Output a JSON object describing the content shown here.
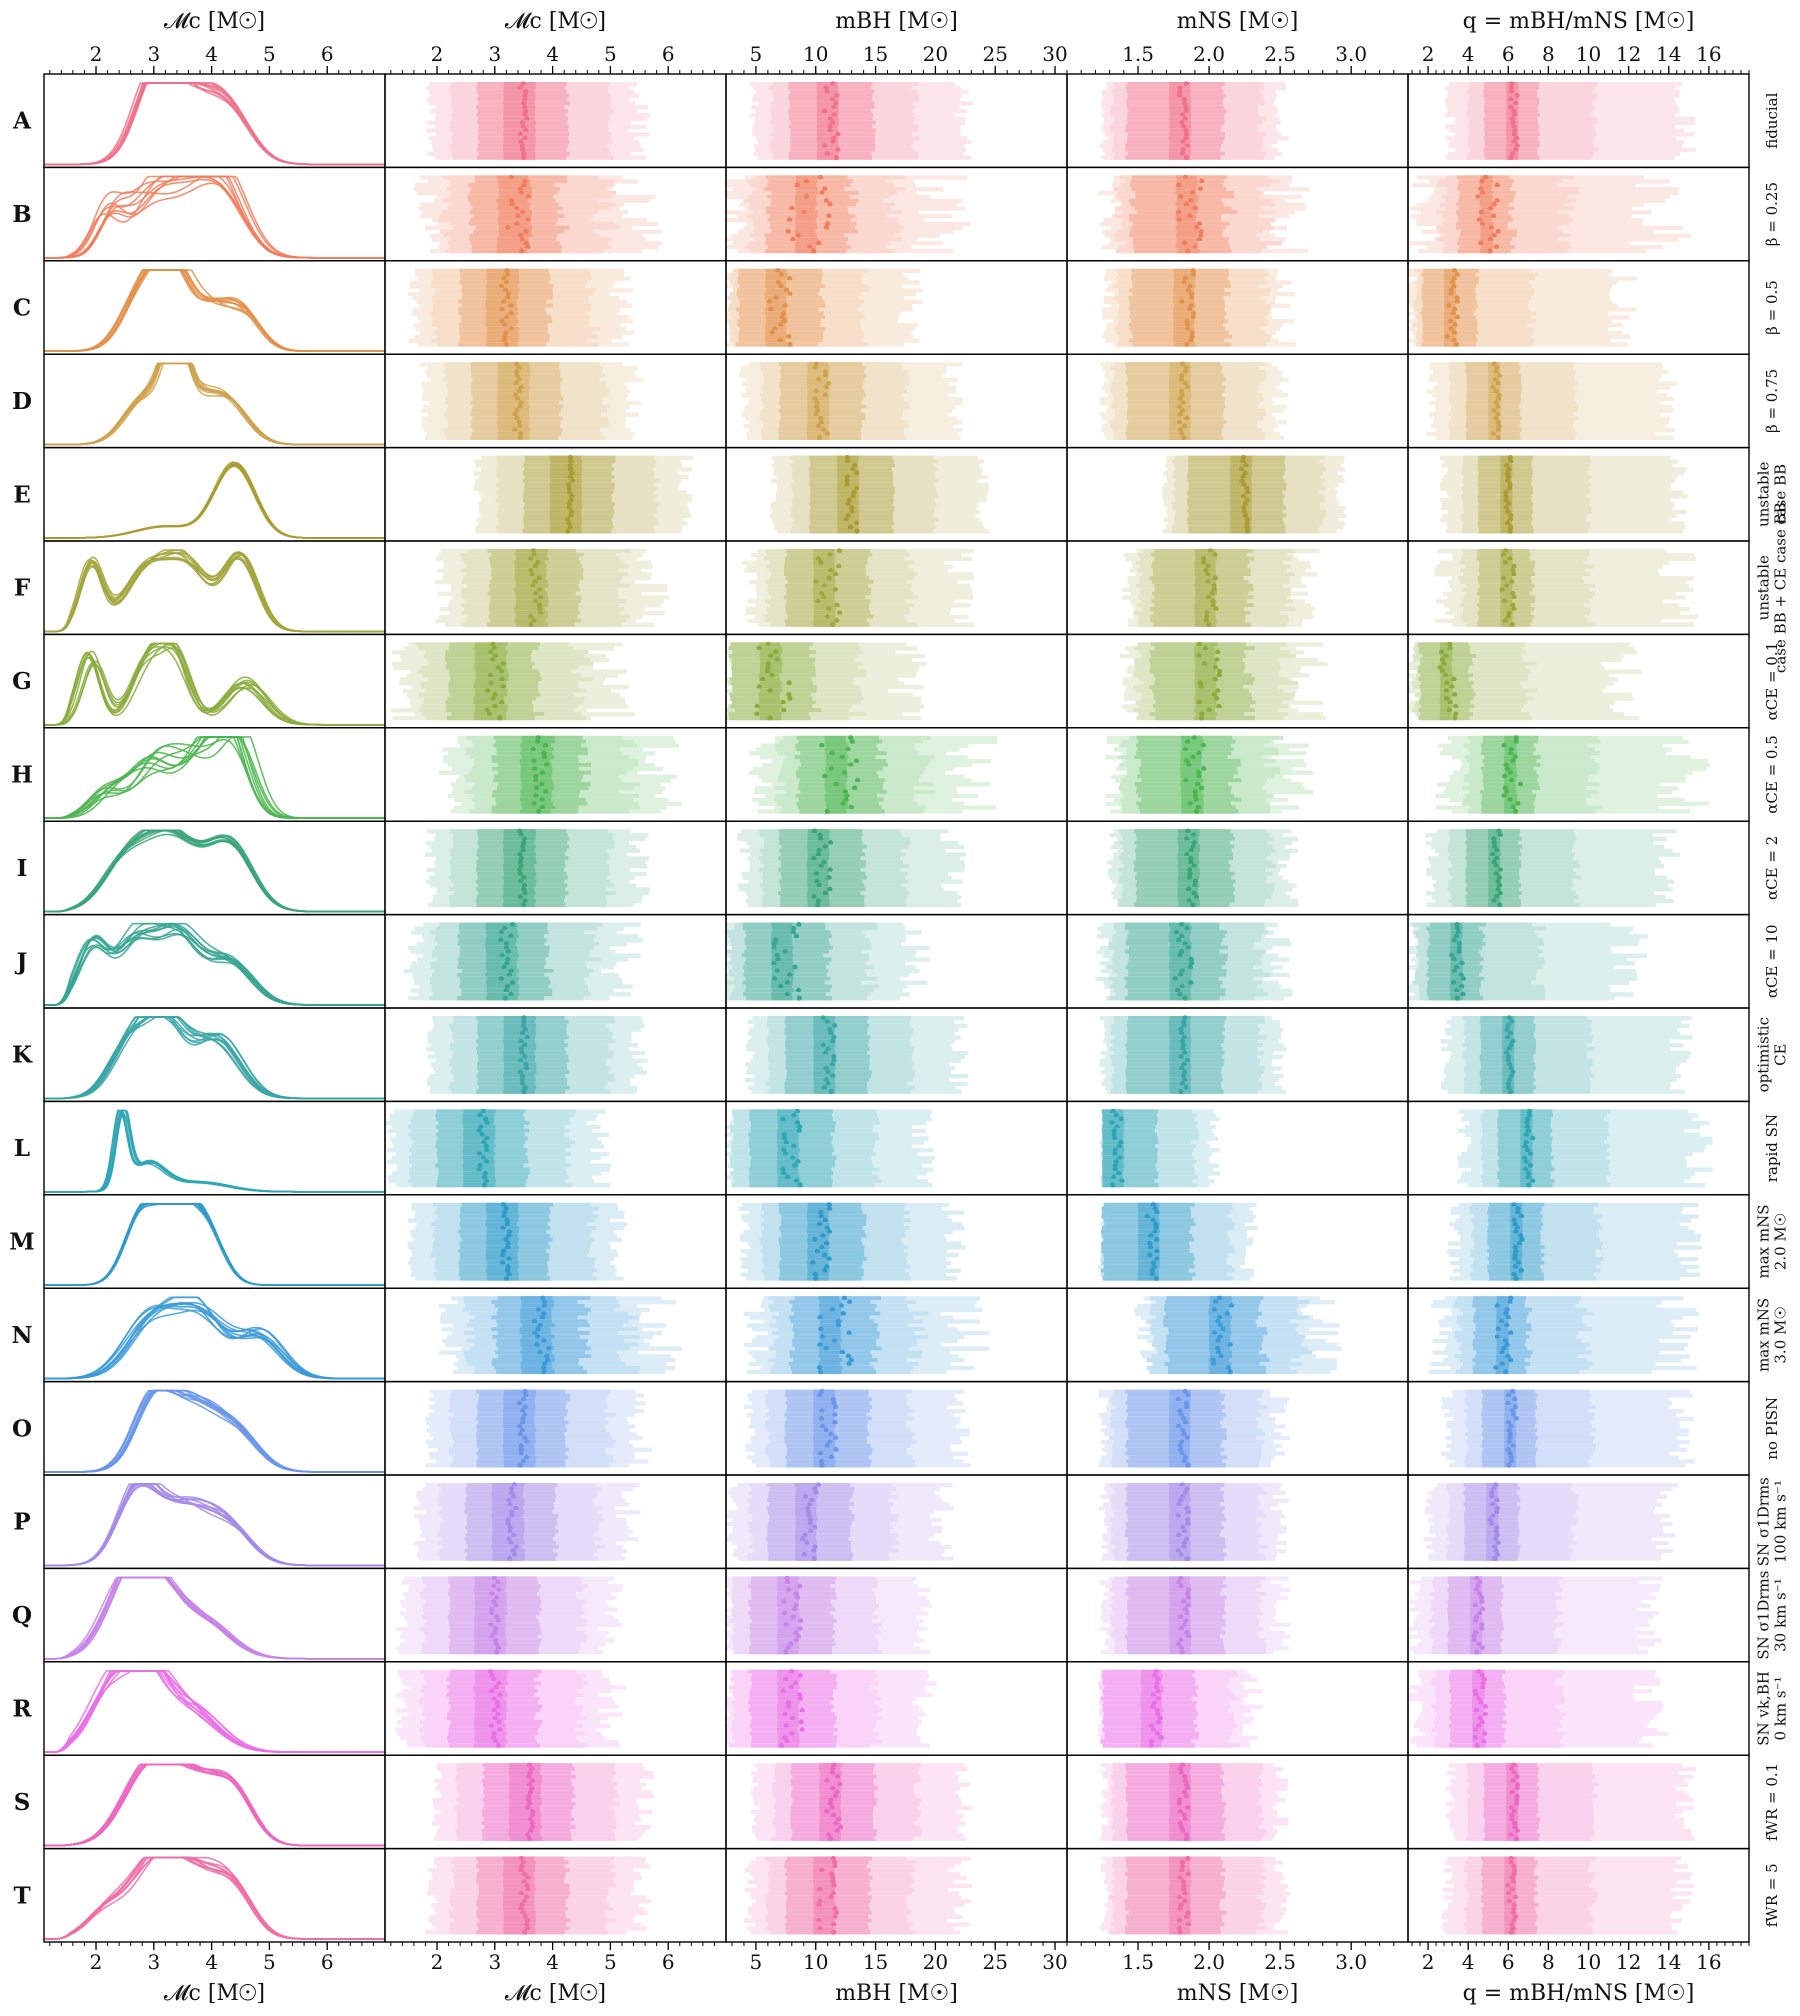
{
  "chart_data": {
    "type": "grid-of-density-and-range-panels",
    "columns": [
      {
        "title": "𝓜c [M☉]",
        "type": "line",
        "xlim": [
          1.1,
          7.0
        ],
        "ticks": [
          2,
          3,
          4,
          5,
          6
        ],
        "tick_labels": [
          "2",
          "3",
          "4",
          "5",
          "6"
        ],
        "top_title": "𝓜c [M☉]",
        "bottom_title": "𝓜c [M☉]"
      },
      {
        "title": "𝓜c [M☉]",
        "type": "range-bars",
        "xlim": [
          1.1,
          7.0
        ],
        "ticks": [
          2,
          3,
          4,
          5,
          6
        ],
        "tick_labels": [
          "2",
          "3",
          "4",
          "5",
          "6"
        ],
        "top_title": "𝓜c [M☉]",
        "bottom_title": "𝓜c [M☉]"
      },
      {
        "title": "mBH [M☉]",
        "type": "range-bars",
        "xlim": [
          2.5,
          31.0
        ],
        "ticks": [
          5,
          10,
          15,
          20,
          25,
          30
        ],
        "tick_labels": [
          "5",
          "10",
          "15",
          "20",
          "25",
          "30"
        ],
        "top_title": "mBH [M☉]",
        "bottom_title": "mBH [M☉]"
      },
      {
        "title": "mNS [M☉]",
        "type": "range-bars",
        "xlim": [
          1.0,
          3.4
        ],
        "ticks": [
          1.5,
          2.0,
          2.5,
          3.0
        ],
        "tick_labels": [
          "1.5",
          "2.0",
          "2.5",
          "3.0"
        ],
        "top_title": "mNS [M☉]",
        "bottom_title": "mNS [M☉]"
      },
      {
        "title": "q = mBH/mNS [M☉]",
        "type": "range-bars",
        "xlim": [
          1.0,
          18.0
        ],
        "ticks": [
          2,
          4,
          6,
          8,
          10,
          12,
          14,
          16
        ],
        "tick_labels": [
          "2",
          "4",
          "6",
          "8",
          "10",
          "12",
          "14",
          "16"
        ],
        "top_title": "q = mBH/mNS [M☉]",
        "bottom_title": "q = mBH/mNS [M☉]"
      }
    ],
    "rows": [
      {
        "letter": "A",
        "variant": "fiducial",
        "color": "#f0728a",
        "peaks": [
          [
            3.0,
            0.95,
            0.35
          ],
          [
            3.6,
            0.75,
            0.5
          ],
          [
            4.3,
            0.55,
            0.4
          ]
        ],
        "jitter": 0.08,
        "med": [
          3.5,
          11.3,
          1.82,
          6.3
        ],
        "spread": 0.04
      },
      {
        "letter": "B",
        "variant": "β = 0.25",
        "color": "#f07e5e",
        "peaks": [
          [
            2.2,
            0.55,
            0.25
          ],
          [
            2.9,
            0.6,
            0.35
          ],
          [
            3.5,
            0.75,
            0.45
          ],
          [
            4.2,
            0.85,
            0.4
          ]
        ],
        "jitter": 0.18,
        "med": [
          3.4,
          9.5,
          1.87,
          5.0
        ],
        "spread": 0.12
      },
      {
        "letter": "C",
        "variant": "β = 0.5",
        "color": "#e3924c",
        "peaks": [
          [
            2.8,
            0.7,
            0.35
          ],
          [
            3.3,
            0.95,
            0.3
          ],
          [
            4.0,
            0.55,
            0.4
          ],
          [
            4.6,
            0.35,
            0.3
          ]
        ],
        "jitter": 0.07,
        "med": [
          3.2,
          7.0,
          1.85,
          3.2
        ],
        "spread": 0.06
      },
      {
        "letter": "D",
        "variant": "β = 0.75",
        "color": "#cfa34e",
        "peaks": [
          [
            2.8,
            0.5,
            0.35
          ],
          [
            3.35,
            0.95,
            0.2
          ],
          [
            3.6,
            0.55,
            0.45
          ],
          [
            4.3,
            0.45,
            0.35
          ]
        ],
        "jitter": 0.06,
        "med": [
          3.4,
          10.5,
          1.82,
          5.4
        ],
        "spread": 0.04
      },
      {
        "letter": "E",
        "variant": "unstable|case BB",
        "color": "#aa9c33",
        "peaks": [
          [
            3.2,
            0.15,
            0.5
          ],
          [
            4.4,
            0.95,
            0.35
          ]
        ],
        "jitter": 0.03,
        "med": [
          4.3,
          13.0,
          2.25,
          6.0
        ],
        "spread": 0.03
      },
      {
        "letter": "F",
        "variant": "unstable|case BB + CE case BB",
        "color": "#a2a63c",
        "peaks": [
          [
            1.9,
            0.85,
            0.2
          ],
          [
            2.9,
            0.8,
            0.4
          ],
          [
            3.6,
            0.75,
            0.35
          ],
          [
            4.5,
            0.95,
            0.3
          ]
        ],
        "jitter": 0.05,
        "med": [
          3.7,
          11.0,
          2.0,
          6.0
        ],
        "spread": 0.07
      },
      {
        "letter": "G",
        "variant": "αCE = 0.1",
        "color": "#8aac3c",
        "peaks": [
          [
            1.9,
            0.9,
            0.2
          ],
          [
            2.9,
            0.85,
            0.3
          ],
          [
            3.4,
            0.7,
            0.25
          ],
          [
            4.6,
            0.55,
            0.35
          ]
        ],
        "jitter": 0.12,
        "med": [
          3.0,
          6.5,
          2.0,
          3.0
        ],
        "spread": 0.1
      },
      {
        "letter": "H",
        "variant": "αCE = 0.5",
        "color": "#4bb54f",
        "peaks": [
          [
            2.2,
            0.3,
            0.3
          ],
          [
            3.0,
            0.6,
            0.35
          ],
          [
            3.8,
            0.75,
            0.4
          ],
          [
            4.4,
            0.95,
            0.3
          ]
        ],
        "jitter": 0.18,
        "med": [
          3.8,
          12.0,
          1.9,
          6.2
        ],
        "spread": 0.1
      },
      {
        "letter": "I",
        "variant": "αCE = 2",
        "color": "#3aa578",
        "peaks": [
          [
            2.5,
            0.6,
            0.4
          ],
          [
            3.3,
            0.95,
            0.45
          ],
          [
            4.3,
            0.85,
            0.4
          ]
        ],
        "jitter": 0.05,
        "med": [
          3.5,
          10.5,
          1.88,
          5.4
        ],
        "spread": 0.05
      },
      {
        "letter": "J",
        "variant": "αCE = 10",
        "color": "#36a592",
        "peaks": [
          [
            1.9,
            0.75,
            0.25
          ],
          [
            2.7,
            0.85,
            0.35
          ],
          [
            3.4,
            0.85,
            0.35
          ],
          [
            4.3,
            0.55,
            0.4
          ]
        ],
        "jitter": 0.09,
        "med": [
          3.2,
          7.5,
          1.82,
          3.5
        ],
        "spread": 0.08
      },
      {
        "letter": "K",
        "variant": "optimistic|CE",
        "color": "#38a5a6",
        "peaks": [
          [
            2.6,
            0.65,
            0.35
          ],
          [
            3.2,
            0.95,
            0.35
          ],
          [
            4.1,
            0.75,
            0.4
          ]
        ],
        "jitter": 0.08,
        "med": [
          3.5,
          11.0,
          1.82,
          6.1
        ],
        "spread": 0.04
      },
      {
        "letter": "L",
        "variant": "rapid SN",
        "color": "#2fa6b6",
        "peaks": [
          [
            2.45,
            0.95,
            0.12
          ],
          [
            2.9,
            0.35,
            0.3
          ],
          [
            3.8,
            0.12,
            0.5
          ]
        ],
        "jitter": 0.06,
        "med": [
          2.8,
          8.0,
          1.35,
          7.0
        ],
        "spread": 0.05
      },
      {
        "letter": "M",
        "variant": "max mNS|2.0 M☉",
        "color": "#2f9bc8",
        "peaks": [
          [
            2.8,
            0.9,
            0.3
          ],
          [
            3.4,
            0.9,
            0.3
          ],
          [
            3.9,
            0.7,
            0.3
          ]
        ],
        "jitter": 0.03,
        "med": [
          3.2,
          10.5,
          1.6,
          6.5
        ],
        "spread": 0.05
      },
      {
        "letter": "N",
        "variant": "max mNS|3.0 M☉",
        "color": "#3b9ad8",
        "peaks": [
          [
            3.0,
            0.75,
            0.45
          ],
          [
            3.8,
            0.8,
            0.4
          ],
          [
            4.8,
            0.55,
            0.4
          ]
        ],
        "jitter": 0.12,
        "med": [
          3.8,
          11.5,
          2.1,
          5.8
        ],
        "spread": 0.1
      },
      {
        "letter": "O",
        "variant": "no PISN",
        "color": "#6b95ea",
        "peaks": [
          [
            3.0,
            0.9,
            0.35
          ],
          [
            3.7,
            0.75,
            0.4
          ],
          [
            4.4,
            0.5,
            0.4
          ]
        ],
        "jitter": 0.06,
        "med": [
          3.5,
          11.0,
          1.82,
          6.2
        ],
        "spread": 0.05
      },
      {
        "letter": "P",
        "variant": "SN σ1Drms|100 km s⁻¹",
        "color": "#a58be8",
        "peaks": [
          [
            2.7,
            0.95,
            0.35
          ],
          [
            3.5,
            0.7,
            0.45
          ],
          [
            4.3,
            0.45,
            0.4
          ]
        ],
        "jitter": 0.07,
        "med": [
          3.3,
          9.5,
          1.82,
          5.3
        ],
        "spread": 0.05
      },
      {
        "letter": "Q",
        "variant": "SN σ1Drms|30 km s⁻¹",
        "color": "#c784e8",
        "peaks": [
          [
            2.5,
            0.8,
            0.4
          ],
          [
            3.0,
            0.75,
            0.4
          ],
          [
            3.8,
            0.5,
            0.5
          ]
        ],
        "jitter": 0.09,
        "med": [
          3.0,
          8.0,
          1.82,
          4.5
        ],
        "spread": 0.05
      },
      {
        "letter": "R",
        "variant": "SN vk,BH|0 km s⁻¹",
        "color": "#ea6ee6",
        "peaks": [
          [
            2.3,
            0.85,
            0.4
          ],
          [
            2.9,
            0.8,
            0.35
          ],
          [
            3.6,
            0.55,
            0.5
          ]
        ],
        "jitter": 0.1,
        "med": [
          3.0,
          8.0,
          1.62,
          4.6
        ],
        "spread": 0.06
      },
      {
        "letter": "S",
        "variant": "fWR = 0.1",
        "color": "#ec67c1",
        "peaks": [
          [
            2.9,
            0.95,
            0.45
          ],
          [
            3.7,
            0.75,
            0.45
          ],
          [
            4.4,
            0.6,
            0.35
          ]
        ],
        "jitter": 0.04,
        "med": [
          3.6,
          11.5,
          1.82,
          6.3
        ],
        "spread": 0.04
      },
      {
        "letter": "T",
        "variant": "fWR = 5",
        "color": "#ef6fa6",
        "peaks": [
          [
            2.2,
            0.35,
            0.35
          ],
          [
            3.0,
            0.85,
            0.4
          ],
          [
            3.7,
            0.75,
            0.45
          ],
          [
            4.4,
            0.55,
            0.35
          ]
        ],
        "jitter": 0.06,
        "med": [
          3.5,
          11.0,
          1.82,
          6.2
        ],
        "spread": 0.05
      }
    ]
  }
}
